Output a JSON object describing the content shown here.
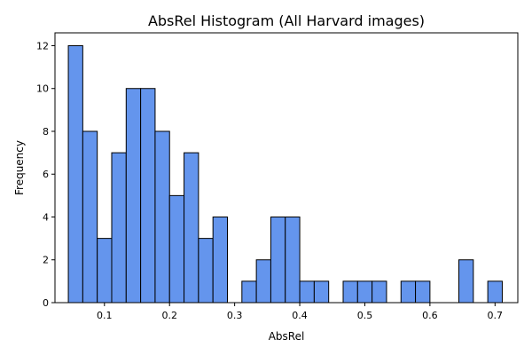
{
  "chart_data": {
    "type": "bar",
    "title": "AbsRel Histogram (All Harvard images)",
    "xlabel": "AbsRel",
    "ylabel": "Frequency",
    "bar_color": "#6495ED",
    "edge_color": "#000000",
    "xlim": [
      0.024,
      0.735
    ],
    "ylim": [
      0,
      12.6
    ],
    "bin_start": 0.0445,
    "bin_width": 0.02222,
    "values": [
      12,
      8,
      3,
      7,
      10,
      10,
      8,
      5,
      7,
      3,
      4,
      0,
      1,
      2,
      4,
      4,
      1,
      1,
      0,
      1,
      1,
      1,
      0,
      1,
      1,
      0,
      0,
      2,
      0,
      1
    ],
    "xticks": [
      0.1,
      0.2,
      0.3,
      0.4,
      0.5,
      0.6,
      0.7
    ],
    "xtick_labels": [
      "0.1",
      "0.2",
      "0.3",
      "0.4",
      "0.5",
      "0.6",
      "0.7"
    ],
    "yticks": [
      0,
      2,
      4,
      6,
      8,
      10,
      12
    ],
    "ytick_labels": [
      "0",
      "2",
      "4",
      "6",
      "8",
      "10",
      "12"
    ],
    "grid": false,
    "legend": "none"
  }
}
